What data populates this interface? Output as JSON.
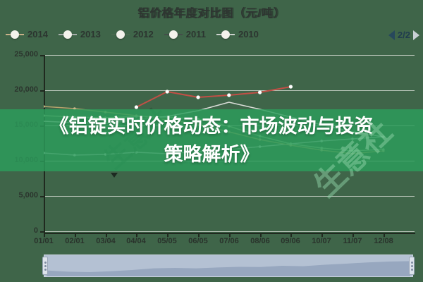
{
  "title": "铝价格年度对比图（元/吨）",
  "pagination": {
    "label": "2/2"
  },
  "overlay": {
    "line1": "《铝锭实时价格动态：市场波动与投资",
    "line2": "策略解析》"
  },
  "watermark": {
    "text": "生意社"
  },
  "colors": {
    "background": "#3f6549",
    "overlay_band": "#2c9e5c",
    "grid": "#ccd4ca",
    "axis": "#20291f",
    "navigator_track": "#b4c1d3",
    "navigator_fill": "#97a7bf"
  },
  "chart_data": {
    "type": "line",
    "title": "铝价格年度对比图（元/吨）",
    "xlabel": "",
    "ylabel": "元/吨",
    "ylim": [
      0,
      25000
    ],
    "grid": true,
    "legend_position": "top",
    "x_labels": [
      "01/01",
      "02/01",
      "03/04",
      "04/04",
      "05/05",
      "06/05",
      "07/06",
      "08/06",
      "09/06",
      "10/07",
      "11/07",
      "12/08"
    ],
    "y_ticks": [
      "25,000",
      "20,000",
      "15,000",
      "10,000",
      "5,000",
      "0"
    ],
    "series": [
      {
        "name": "2014",
        "color": "#c24f46",
        "legend_line_color": "#c9b189",
        "markers": true,
        "marker_color": "#ffffff",
        "marker_r": 2.6,
        "width": 2,
        "values": [
          null,
          null,
          null,
          17600,
          19800,
          19000,
          19300,
          19700,
          20500,
          null,
          null,
          null
        ]
      },
      {
        "name": "2013",
        "color": "#d9ddd7",
        "legend_line_color": "#a7aeab",
        "markers": false,
        "width": 1.5,
        "values": [
          15600,
          15400,
          15300,
          15800,
          16300,
          17100,
          18300,
          17300,
          16200,
          15100,
          14100,
          13400
        ]
      },
      {
        "name": "2012",
        "color": "#9fbd92",
        "legend_line_color": "#49684e",
        "markers": true,
        "marker_color": "#b9d2ae",
        "marker_r": 1.8,
        "width": 1.5,
        "values": [
          16400,
          16200,
          16100,
          16300,
          16200,
          15900,
          14900,
          13500,
          12400,
          11800,
          11400,
          11600
        ]
      },
      {
        "name": "2011",
        "color": "#b7a36c",
        "legend_line_color": "#434e49",
        "markers": true,
        "marker_color": "#c9b88a",
        "marker_r": 1.8,
        "width": 1.5,
        "values": [
          17700,
          17400,
          16900,
          16400,
          15800,
          15200,
          14100,
          13000,
          12200,
          11500,
          11000,
          11400
        ]
      },
      {
        "name": "2010",
        "color": "#bcc3c2",
        "legend_line_color": "#cdd2ce",
        "markers": true,
        "marker_color": "#dfe3e0",
        "marker_r": 1.8,
        "width": 1.5,
        "values": [
          11100,
          10800,
          10900,
          11200,
          11000,
          11300,
          11600,
          12000,
          12400,
          12800,
          13100,
          13400
        ]
      }
    ]
  },
  "navigator": {
    "profile": [
      0.72,
      0.78,
      0.8,
      0.76,
      0.7,
      0.62,
      0.6,
      0.62,
      0.58,
      0.55,
      0.56,
      0.5,
      0.52,
      0.45,
      0.4,
      0.34,
      0.3,
      0.28
    ]
  }
}
